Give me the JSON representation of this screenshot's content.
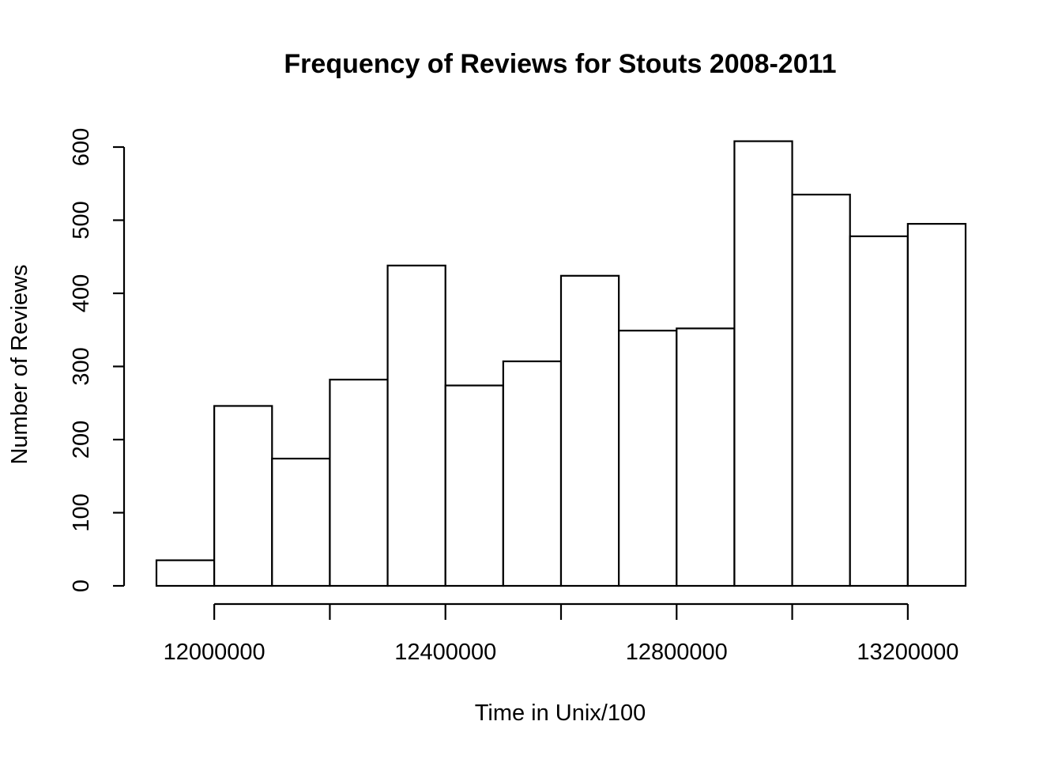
{
  "chart_data": {
    "type": "bar",
    "subtype": "histogram",
    "title": "Frequency of Reviews for Stouts 2008-2011",
    "xlabel": "Time in Unix/100",
    "ylabel": "Number of Reviews",
    "bin_edges": [
      11900000,
      12000000,
      12100000,
      12200000,
      12300000,
      12400000,
      12500000,
      12600000,
      12700000,
      12800000,
      12900000,
      13000000,
      13100000,
      13200000,
      13300000
    ],
    "values": [
      35,
      246,
      174,
      282,
      438,
      274,
      307,
      424,
      349,
      352,
      608,
      535,
      478,
      495
    ],
    "xlim": [
      11900000,
      13300000
    ],
    "ylim": [
      0,
      600
    ],
    "x_axis_ticks": [
      12000000,
      12200000,
      12400000,
      12600000,
      12800000,
      13000000,
      13200000
    ],
    "x_tick_labels": [
      {
        "value": 12000000,
        "label": "12000000"
      },
      {
        "value": 12400000,
        "label": "12400000"
      },
      {
        "value": 12800000,
        "label": "12800000"
      },
      {
        "value": 13200000,
        "label": "13200000"
      }
    ],
    "y_ticks": [
      0,
      100,
      200,
      300,
      400,
      500,
      600
    ],
    "y_tick_labels": [
      "0",
      "100",
      "200",
      "300",
      "400",
      "500",
      "600"
    ],
    "grid": false,
    "legend": "none",
    "colors": {
      "bar_fill": "#ffffff",
      "bar_stroke": "#000000",
      "background": "#ffffff"
    }
  }
}
